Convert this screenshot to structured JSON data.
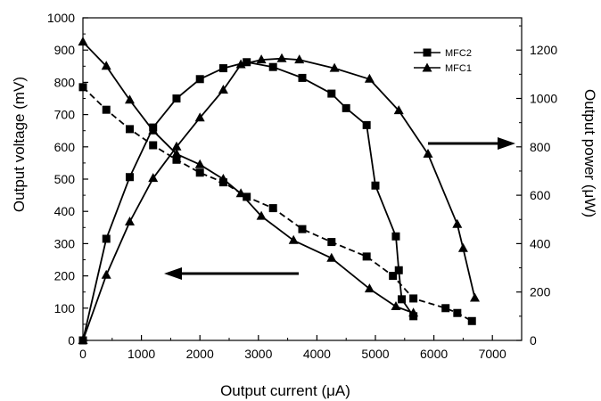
{
  "chart_data": {
    "type": "line",
    "xlabel": "Output current (μA)",
    "ylabel_left": "Output voltage (mV)",
    "ylabel_right": "Output power (μW)",
    "xlim": [
      0,
      7500
    ],
    "ylim_left": [
      0,
      1000
    ],
    "ylim_right": [
      0,
      1333.33
    ],
    "xticks": [
      "0",
      "1000",
      "2000",
      "3000",
      "4000",
      "5000",
      "6000",
      "7000"
    ],
    "yticks_left": [
      "0",
      "100",
      "200",
      "300",
      "400",
      "500",
      "600",
      "700",
      "800",
      "900",
      "1000"
    ],
    "yticks_right": [
      "0",
      "200",
      "400",
      "600",
      "800",
      "1000",
      "1200"
    ],
    "legend": [
      {
        "name": "MFC2",
        "marker": "square"
      },
      {
        "name": "MFC1",
        "marker": "triangle"
      }
    ],
    "legend_position": "top-right",
    "grid": false,
    "series": [
      {
        "name": "MFC2",
        "quantity": "voltage",
        "axis": "left",
        "marker": "square",
        "dash": true,
        "x": [
          0,
          400,
          800,
          1200,
          1600,
          2000,
          2400,
          2800,
          3250,
          3750,
          4250,
          4850,
          5300,
          5650,
          6200,
          6400,
          6650
        ],
        "y": [
          785,
          715,
          655,
          605,
          560,
          520,
          490,
          445,
          410,
          345,
          305,
          260,
          200,
          130,
          100,
          85,
          60
        ]
      },
      {
        "name": "MFC1",
        "quantity": "voltage",
        "axis": "left",
        "marker": "triangle",
        "dash": false,
        "x": [
          0,
          400,
          800,
          1200,
          1600,
          2000,
          2400,
          2700,
          3050,
          3600,
          4250,
          4900,
          5350,
          5650
        ],
        "y": [
          925,
          850,
          745,
          650,
          578,
          545,
          500,
          455,
          385,
          310,
          255,
          160,
          105,
          85
        ]
      },
      {
        "name": "MFC2",
        "quantity": "power",
        "axis": "right",
        "marker": "square",
        "dash": false,
        "x": [
          0,
          400,
          800,
          1200,
          1600,
          2000,
          2400,
          2800,
          3250,
          3750,
          4250,
          4500,
          4850,
          5000,
          5350,
          5400,
          5450,
          5650
        ],
        "y": [
          0,
          420,
          675,
          880,
          1000,
          1080,
          1125,
          1150,
          1130,
          1085,
          1020,
          960,
          890,
          640,
          430,
          290,
          170,
          100
        ]
      },
      {
        "name": "MFC1",
        "quantity": "power",
        "axis": "right",
        "marker": "triangle",
        "dash": false,
        "x": [
          0,
          400,
          800,
          1200,
          1600,
          2000,
          2400,
          2700,
          3050,
          3400,
          3700,
          4300,
          4900,
          5400,
          5900,
          6400,
          6500,
          6700
        ],
        "y": [
          0,
          270,
          490,
          670,
          800,
          920,
          1035,
          1140,
          1160,
          1165,
          1160,
          1125,
          1080,
          950,
          770,
          480,
          380,
          175
        ]
      }
    ],
    "annotations": [
      {
        "type": "arrow",
        "direction": "left",
        "points_to_axis": "left"
      },
      {
        "type": "arrow",
        "direction": "right",
        "points_to_axis": "right"
      }
    ]
  }
}
